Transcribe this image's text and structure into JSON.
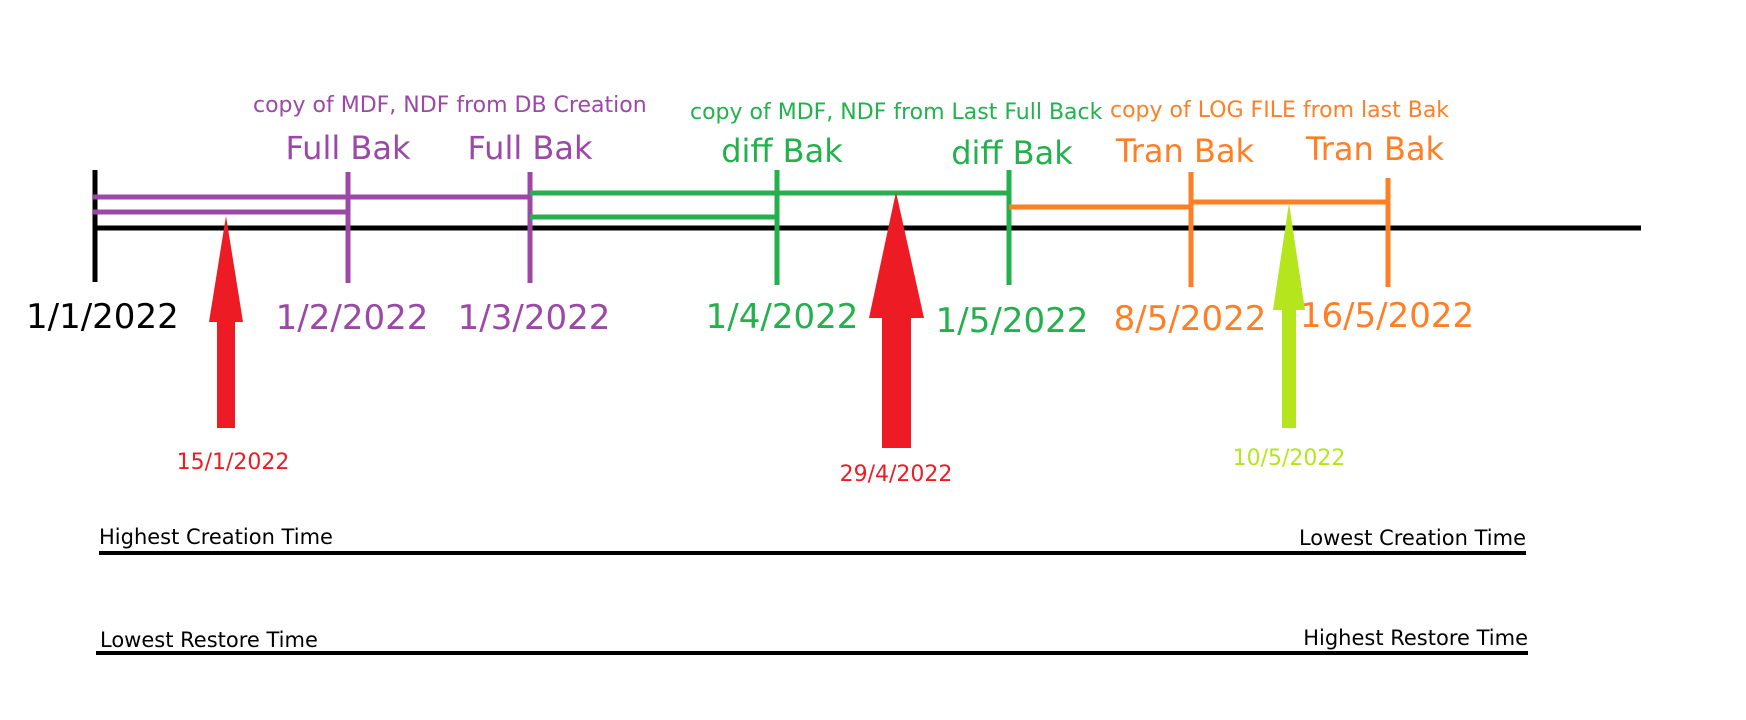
{
  "colors": {
    "black": "#000000",
    "purple": "#9b48a7",
    "green": "#22b14c",
    "orange": "#ff7f27",
    "red": "#ed1c24",
    "lime": "#b5e61d"
  },
  "annotations": {
    "purple_note": "copy of MDF, NDF from DB Creation",
    "green_note": "copy of MDF, NDF from Last Full Back",
    "orange_note": "copy of LOG FILE from last Bak"
  },
  "backups": [
    {
      "label": "Full Bak",
      "date": "1/2/2022",
      "color": "purple"
    },
    {
      "label": "Full Bak",
      "date": "1/3/2022",
      "color": "purple"
    },
    {
      "label": "diff Bak",
      "date": "1/4/2022",
      "color": "green"
    },
    {
      "label": "diff Bak",
      "date": "1/5/2022",
      "color": "green"
    },
    {
      "label": "Tran Bak",
      "date": "8/5/2022",
      "color": "orange"
    },
    {
      "label": "Tran Bak",
      "date": "16/5/2022",
      "color": "orange"
    }
  ],
  "start_date": "1/1/2022",
  "restore_points": [
    {
      "date": "15/1/2022",
      "color": "red"
    },
    {
      "date": "29/4/2022",
      "color": "red"
    },
    {
      "date": "10/5/2022",
      "color": "lime"
    }
  ],
  "scales": {
    "creation": {
      "left": "Highest Creation Time",
      "right": "Lowest Creation Time"
    },
    "restore": {
      "left": "Lowest Restore Time",
      "right": "Highest Restore Time"
    }
  }
}
